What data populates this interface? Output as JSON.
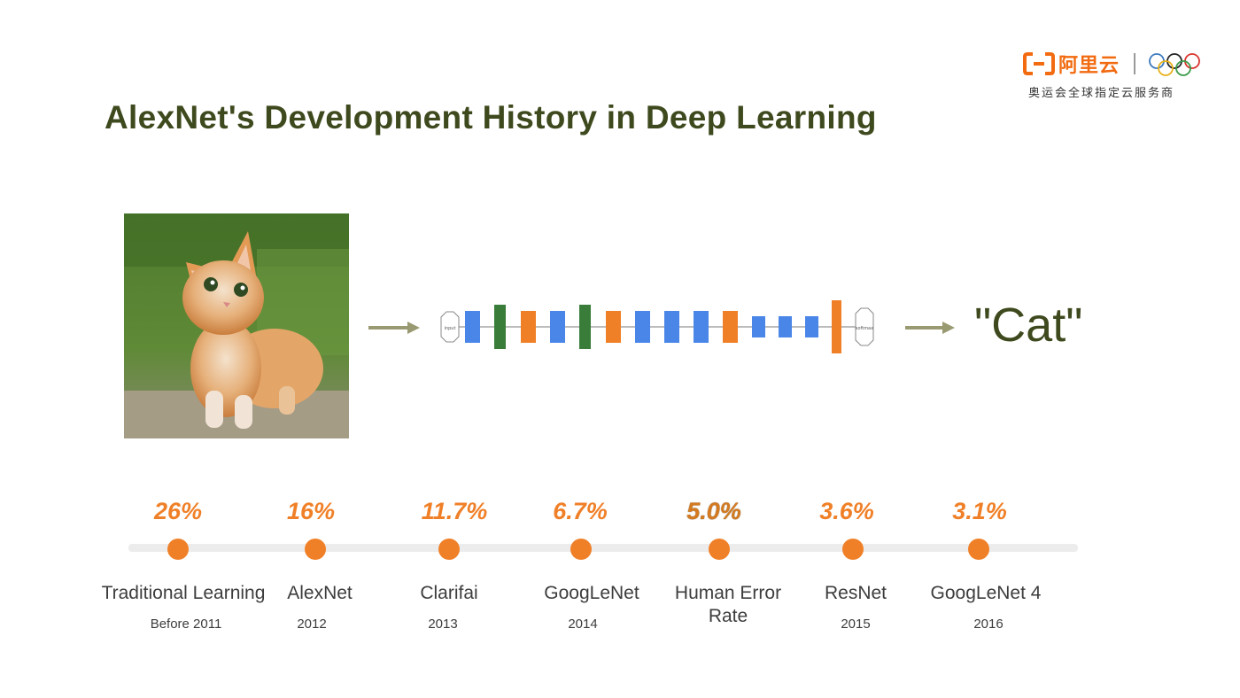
{
  "logo": {
    "brand_text": "阿里云",
    "tagline": "奥运会全球指定云服务商",
    "brand_color": "#f26b10"
  },
  "title": "AlexNet's Development History in Deep Learning",
  "image": {
    "subject": "kitten photo"
  },
  "network": {
    "input_label": "input",
    "output_label": "softmax",
    "colors": {
      "conv": "#4a86e8",
      "pool": "#f08028",
      "norm": "#3a7d3a",
      "fc": "#f08028"
    }
  },
  "result": "\"Cat\"",
  "timeline": {
    "accent": "#f08028",
    "items": [
      {
        "rate": "26%",
        "name": "Traditional Learning",
        "name2": "",
        "year": "Before 2011"
      },
      {
        "rate": "16%",
        "name": "AlexNet",
        "name2": "",
        "year": "2012"
      },
      {
        "rate": "11.7%",
        "name": "Clarifai",
        "name2": "",
        "year": "2013"
      },
      {
        "rate": "6.7%",
        "name": "GoogLeNet",
        "name2": "",
        "year": "2014"
      },
      {
        "rate": "5.0%",
        "name": "Human Error",
        "name2": "Rate",
        "year": ""
      },
      {
        "rate": "3.6%",
        "name": "ResNet",
        "name2": "",
        "year": "2015"
      },
      {
        "rate": "3.1%",
        "name": "GoogLeNet 4",
        "name2": "",
        "year": "2016"
      }
    ]
  }
}
